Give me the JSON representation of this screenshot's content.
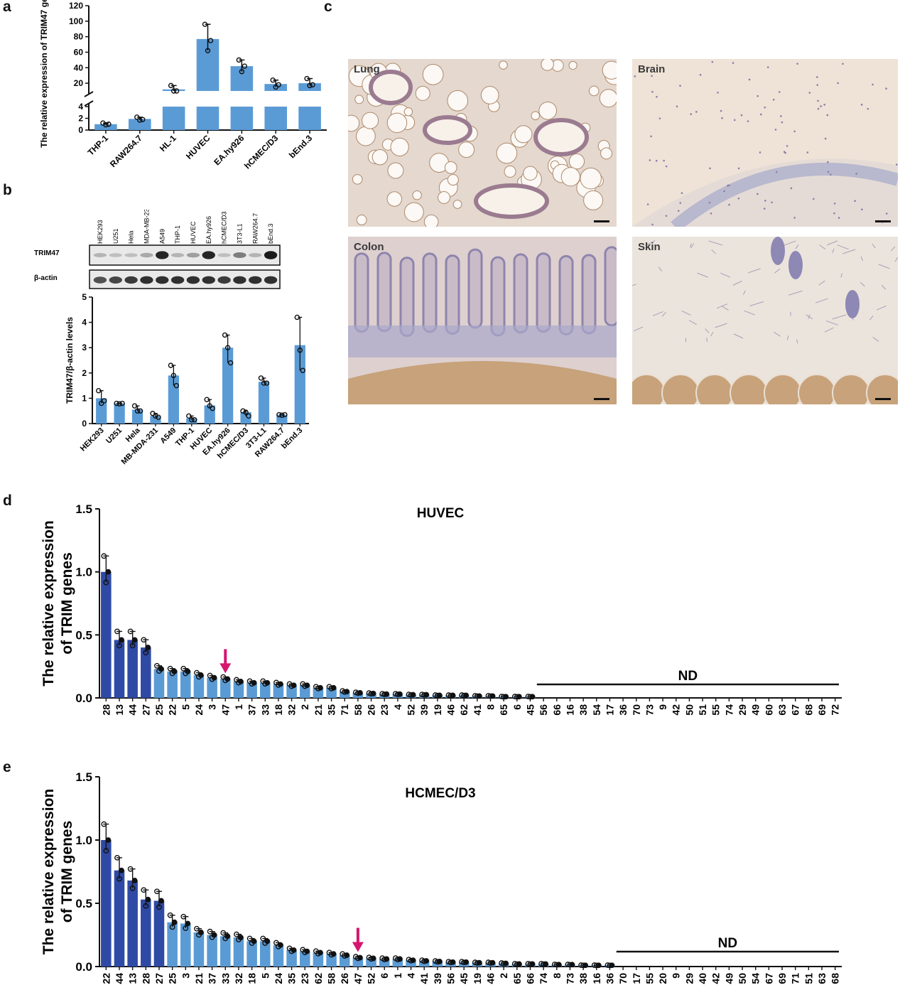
{
  "panels": {
    "a": "a",
    "b": "b",
    "c": "c",
    "d": "d",
    "e": "e"
  },
  "colors": {
    "light_bar": "#5b9bd5",
    "dark_bar": "#2f4aa5",
    "arrow": "#d6166e",
    "blot_bg": "#e9e9e9"
  },
  "blot": {
    "lanes": [
      "HEK293",
      "U251",
      "Hela",
      "MDA-MB-231",
      "A549",
      "THP-1",
      "HUVEC",
      "EA.hy926",
      "hCMEC/D3",
      "3T3-L1",
      "RAW264.7",
      "bEnd.3"
    ],
    "rows": [
      "TRIM47",
      "β-actin"
    ],
    "trim47_intensity": [
      0.25,
      0.2,
      0.2,
      0.3,
      0.9,
      0.25,
      0.35,
      0.9,
      0.2,
      0.5,
      0.25,
      0.95
    ],
    "actin_intensity": [
      0.7,
      0.75,
      0.8,
      0.85,
      0.85,
      0.85,
      0.85,
      0.85,
      0.8,
      0.85,
      0.85,
      0.85
    ]
  },
  "micrographs": {
    "lung": {
      "label": "Lung",
      "bg": "#e4d8cf"
    },
    "brain": {
      "label": "Brain",
      "bg": "#eee3d6"
    },
    "colon": {
      "label": "Colon",
      "bg": "#ddd0cf"
    },
    "skin": {
      "label": "Skin",
      "bg": "#ebe4dc"
    }
  },
  "chart_data": [
    {
      "panel": "a",
      "type": "bar",
      "ylabel": "The relative expression of TRIM47 gene",
      "categories": [
        "THP-1",
        "RAW264.7",
        "HL-1",
        "HUVEC",
        "EA.hy926",
        "hCMEC/D3",
        "bEnd.3"
      ],
      "values": [
        1,
        1.9,
        12,
        77,
        42,
        19,
        20
      ],
      "points": [
        [
          1.2,
          0.9,
          1.0
        ],
        [
          2.2,
          1.7,
          1.8
        ],
        [
          17,
          10,
          10
        ],
        [
          96,
          62,
          75
        ],
        [
          50,
          35,
          42
        ],
        [
          24,
          15,
          18
        ],
        [
          26,
          17,
          18
        ]
      ],
      "axis_break": true,
      "lower_ylim": [
        0,
        4
      ],
      "lower_yticks": [
        "0",
        "2",
        "4"
      ],
      "upper_ylim": [
        10,
        120
      ],
      "upper_yticks": [
        "20",
        "40",
        "60",
        "80",
        "100",
        "120"
      ]
    },
    {
      "panel": "b",
      "type": "bar",
      "ylabel": "TRIM47/β-actin levels",
      "categories": [
        "HEK293",
        "U251",
        "Hela",
        "MB-MDA-231",
        "A549",
        "THP-1",
        "HUVEC",
        "EA.hy926",
        "hCMEC/D3",
        "3T3-L1",
        "RAW264.7",
        "bEnd.3"
      ],
      "values": [
        1.0,
        0.8,
        0.55,
        0.3,
        1.9,
        0.2,
        0.72,
        3.0,
        0.45,
        1.65,
        0.35,
        3.1
      ],
      "points": [
        [
          1.3,
          0.8,
          0.9
        ],
        [
          0.8,
          0.78,
          0.8
        ],
        [
          0.7,
          0.5,
          0.5
        ],
        [
          0.4,
          0.3,
          0.25
        ],
        [
          2.3,
          1.9,
          1.5
        ],
        [
          0.3,
          0.15,
          0.15
        ],
        [
          0.95,
          0.7,
          0.6
        ],
        [
          3.5,
          3.0,
          2.4
        ],
        [
          0.5,
          0.45,
          0.3
        ],
        [
          1.8,
          1.6,
          1.6
        ],
        [
          0.35,
          0.33,
          0.35
        ],
        [
          4.2,
          2.9,
          2.1
        ]
      ],
      "ylim": [
        0,
        5
      ],
      "yticks": [
        "0",
        "1",
        "2",
        "3",
        "4",
        "5"
      ]
    },
    {
      "panel": "d",
      "type": "bar",
      "title": "HUVEC",
      "ylabel": "The relative expression of TRIM genes",
      "ylim": [
        0,
        1.5
      ],
      "yticks": [
        "0.0",
        "0.5",
        "1.0",
        "1.5"
      ],
      "categories": [
        "28",
        "13",
        "44",
        "27",
        "25",
        "22",
        "5",
        "24",
        "3",
        "47",
        "1",
        "37",
        "33",
        "18",
        "32",
        "2",
        "21",
        "35",
        "71",
        "58",
        "26",
        "23",
        "4",
        "52",
        "39",
        "19",
        "46",
        "62",
        "41",
        "8",
        "65",
        "6",
        "45",
        "56",
        "66",
        "16",
        "38",
        "54",
        "17",
        "36",
        "70",
        "73",
        "9",
        "42",
        "50",
        "51",
        "55",
        "74",
        "29",
        "49",
        "60",
        "63",
        "67",
        "68",
        "69",
        "72"
      ],
      "values": [
        1.0,
        0.46,
        0.46,
        0.4,
        0.23,
        0.21,
        0.21,
        0.18,
        0.16,
        0.15,
        0.13,
        0.12,
        0.12,
        0.11,
        0.1,
        0.1,
        0.08,
        0.08,
        0.05,
        0.04,
        0.035,
        0.03,
        0.03,
        0.025,
        0.025,
        0.02,
        0.02,
        0.02,
        0.015,
        0.015,
        0.01,
        0.01,
        0.01,
        0,
        0,
        0,
        0,
        0,
        0,
        0,
        0,
        0,
        0,
        0,
        0,
        0,
        0,
        0,
        0,
        0,
        0,
        0,
        0,
        0,
        0,
        0
      ],
      "dark_count": 4,
      "highlight": "47",
      "nd_label": "ND",
      "nd_start": "56",
      "nd_end": "72"
    },
    {
      "panel": "e",
      "type": "bar",
      "title": "HCMEC/D3",
      "ylabel": "The relative expression of TRIM genes",
      "ylim": [
        0,
        1.5
      ],
      "yticks": [
        "0.0",
        "0.5",
        "1.0",
        "1.5"
      ],
      "categories": [
        "22",
        "44",
        "13",
        "28",
        "27",
        "25",
        "3",
        "21",
        "37",
        "33",
        "32",
        "18",
        "5",
        "24",
        "35",
        "23",
        "62",
        "58",
        "26",
        "47",
        "52",
        "6",
        "1",
        "4",
        "41",
        "39",
        "56",
        "45",
        "19",
        "46",
        "2",
        "65",
        "66",
        "74",
        "8",
        "73",
        "38",
        "16",
        "36",
        "70",
        "17",
        "55",
        "20",
        "9",
        "29",
        "40",
        "42",
        "49",
        "50",
        "54",
        "67",
        "69",
        "71",
        "51",
        "63",
        "68"
      ],
      "values": [
        1.0,
        0.76,
        0.68,
        0.53,
        0.52,
        0.35,
        0.34,
        0.27,
        0.25,
        0.24,
        0.23,
        0.2,
        0.2,
        0.17,
        0.13,
        0.12,
        0.11,
        0.1,
        0.09,
        0.07,
        0.065,
        0.06,
        0.06,
        0.05,
        0.045,
        0.04,
        0.035,
        0.035,
        0.03,
        0.03,
        0.025,
        0.02,
        0.02,
        0.02,
        0.015,
        0.015,
        0.01,
        0.01,
        0.01,
        0,
        0,
        0,
        0,
        0,
        0,
        0,
        0,
        0,
        0,
        0,
        0,
        0,
        0,
        0,
        0,
        0
      ],
      "dark_count": 5,
      "highlight": "47",
      "nd_label": "ND",
      "nd_start": "70",
      "nd_end": "68"
    }
  ]
}
